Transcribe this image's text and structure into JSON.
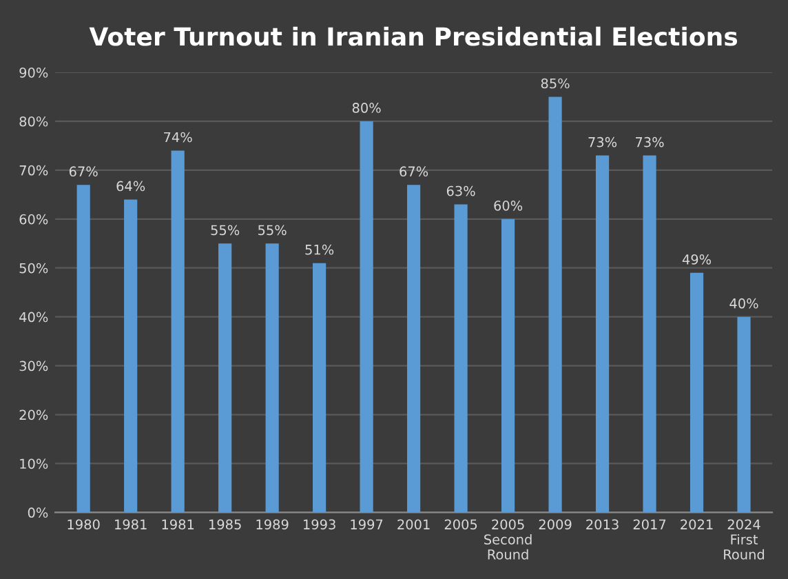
{
  "chart_data": {
    "type": "bar",
    "title": "Voter Turnout in Iranian Presidential Elections",
    "categories": [
      "1980",
      "1981",
      "1981",
      "1985",
      "1989",
      "1993",
      "1997",
      "2001",
      "2005",
      "2005\nSecond\nRound",
      "2009",
      "2013",
      "2017",
      "2021",
      "2024\nFirst\nRound"
    ],
    "values": [
      67,
      64,
      74,
      55,
      55,
      51,
      80,
      67,
      63,
      60,
      85,
      73,
      73,
      49,
      40
    ],
    "value_labels": [
      "67%",
      "64%",
      "74%",
      "55%",
      "55%",
      "51%",
      "80%",
      "67%",
      "63%",
      "60%",
      "85%",
      "73%",
      "73%",
      "49%",
      "40%"
    ],
    "color": "#5b9bd5",
    "ylim": [
      0,
      90
    ],
    "yticks": [
      {
        "value": 0,
        "label": "0%"
      },
      {
        "value": 10,
        "label": "10%"
      },
      {
        "value": 20,
        "label": "20%"
      },
      {
        "value": 30,
        "label": "30%"
      },
      {
        "value": 40,
        "label": "40%"
      },
      {
        "value": 50,
        "label": "50%"
      },
      {
        "value": 60,
        "label": "60%"
      },
      {
        "value": 70,
        "label": "70%"
      },
      {
        "value": 80,
        "label": "80%"
      },
      {
        "value": 90,
        "label": "90%"
      }
    ],
    "grid": "y",
    "legend": false
  }
}
